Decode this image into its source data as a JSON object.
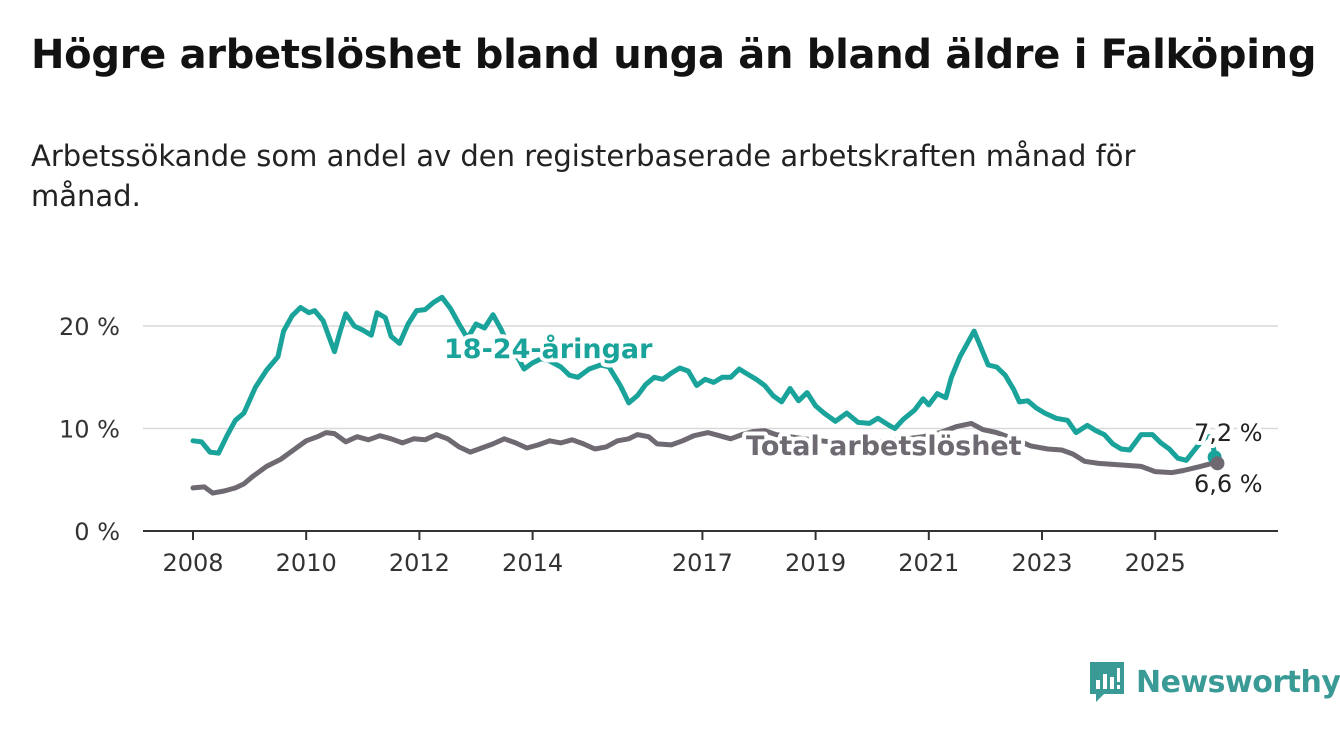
{
  "header": {
    "title": "Högre arbetslöshet bland unga än bland äldre i Falköping",
    "subtitle": "Arbetssökande som andel av den registerbaserade arbetskraften månad för månad."
  },
  "brand": {
    "name": "Newsworthy",
    "icon": "newsworthy-bar-chart-icon",
    "color": "#3a9a96"
  },
  "colors": {
    "youth": "#1aa39a",
    "total": "#6f6a72",
    "grid": "#d9d9d9",
    "axis": "#333333"
  },
  "chart_data": {
    "type": "line",
    "title": "Högre arbetslöshet bland unga än bland äldre i Falköping",
    "subtitle": "Arbetssökande som andel av den registerbaserade arbetskraften månad för månad.",
    "xlabel": "",
    "ylabel": "",
    "x_ticks": [
      "2008",
      "2010",
      "2012",
      "2014",
      "2017",
      "2019",
      "2021",
      "2023",
      "2025"
    ],
    "y_ticks": [
      "0 %",
      "10 %",
      "20 %"
    ],
    "y_tick_values": [
      0,
      10,
      20
    ],
    "xlim": [
      2008.0,
      2026.1
    ],
    "ylim": [
      0,
      25
    ],
    "grid": true,
    "legend": "direct labels on lines",
    "series": [
      {
        "name": "18-24-åringar",
        "end_label": "7,2 %",
        "points": [
          [
            2008.0,
            8.8
          ],
          [
            2008.15,
            8.7
          ],
          [
            2008.3,
            7.7
          ],
          [
            2008.45,
            7.6
          ],
          [
            2008.6,
            9.3
          ],
          [
            2008.75,
            10.8
          ],
          [
            2008.9,
            11.5
          ],
          [
            2009.1,
            14.0
          ],
          [
            2009.3,
            15.7
          ],
          [
            2009.5,
            17.0
          ],
          [
            2009.6,
            19.5
          ],
          [
            2009.75,
            21.0
          ],
          [
            2009.9,
            21.8
          ],
          [
            2010.05,
            21.3
          ],
          [
            2010.15,
            21.5
          ],
          [
            2010.3,
            20.5
          ],
          [
            2010.4,
            19.0
          ],
          [
            2010.5,
            17.5
          ],
          [
            2010.6,
            19.5
          ],
          [
            2010.7,
            21.2
          ],
          [
            2010.85,
            20.0
          ],
          [
            2011.0,
            19.6
          ],
          [
            2011.15,
            19.1
          ],
          [
            2011.25,
            21.3
          ],
          [
            2011.4,
            20.8
          ],
          [
            2011.5,
            19.0
          ],
          [
            2011.65,
            18.3
          ],
          [
            2011.8,
            20.2
          ],
          [
            2011.95,
            21.5
          ],
          [
            2012.1,
            21.6
          ],
          [
            2012.25,
            22.3
          ],
          [
            2012.4,
            22.8
          ],
          [
            2012.55,
            21.7
          ],
          [
            2012.7,
            20.2
          ],
          [
            2012.85,
            18.8
          ],
          [
            2013.0,
            20.2
          ],
          [
            2013.15,
            19.8
          ],
          [
            2013.3,
            21.1
          ],
          [
            2013.45,
            19.6
          ],
          [
            2013.6,
            17.7
          ],
          [
            2013.75,
            16.8
          ],
          [
            2013.85,
            15.8
          ],
          [
            2014.0,
            16.4
          ],
          [
            2014.15,
            16.8
          ],
          [
            2014.3,
            16.6
          ],
          [
            2014.5,
            16.0
          ],
          [
            2014.65,
            15.2
          ],
          [
            2014.8,
            15.0
          ],
          [
            2015.0,
            15.8
          ],
          [
            2015.2,
            16.2
          ],
          [
            2015.35,
            16.0
          ],
          [
            2015.55,
            14.2
          ],
          [
            2015.7,
            12.5
          ],
          [
            2015.85,
            13.2
          ],
          [
            2016.0,
            14.3
          ],
          [
            2016.15,
            15.0
          ],
          [
            2016.3,
            14.8
          ],
          [
            2016.45,
            15.4
          ],
          [
            2016.6,
            15.9
          ],
          [
            2016.75,
            15.6
          ],
          [
            2016.9,
            14.2
          ],
          [
            2017.05,
            14.8
          ],
          [
            2017.2,
            14.5
          ],
          [
            2017.35,
            15.0
          ],
          [
            2017.5,
            15.0
          ],
          [
            2017.65,
            15.8
          ],
          [
            2017.8,
            15.3
          ],
          [
            2017.95,
            14.8
          ],
          [
            2018.1,
            14.2
          ],
          [
            2018.25,
            13.2
          ],
          [
            2018.4,
            12.6
          ],
          [
            2018.55,
            13.9
          ],
          [
            2018.7,
            12.7
          ],
          [
            2018.85,
            13.5
          ],
          [
            2019.0,
            12.2
          ],
          [
            2019.15,
            11.5
          ],
          [
            2019.35,
            10.7
          ],
          [
            2019.55,
            11.5
          ],
          [
            2019.75,
            10.6
          ],
          [
            2019.95,
            10.5
          ],
          [
            2020.1,
            11.0
          ],
          [
            2020.3,
            10.3
          ],
          [
            2020.4,
            10.0
          ],
          [
            2020.55,
            10.9
          ],
          [
            2020.75,
            11.8
          ],
          [
            2020.9,
            12.9
          ],
          [
            2021.0,
            12.3
          ],
          [
            2021.15,
            13.4
          ],
          [
            2021.3,
            13.0
          ],
          [
            2021.4,
            15.0
          ],
          [
            2021.55,
            17.0
          ],
          [
            2021.7,
            18.5
          ],
          [
            2021.8,
            19.5
          ],
          [
            2021.95,
            17.5
          ],
          [
            2022.05,
            16.2
          ],
          [
            2022.2,
            16.0
          ],
          [
            2022.35,
            15.2
          ],
          [
            2022.5,
            13.8
          ],
          [
            2022.6,
            12.6
          ],
          [
            2022.75,
            12.7
          ],
          [
            2022.9,
            12.0
          ],
          [
            2023.05,
            11.5
          ],
          [
            2023.25,
            11.0
          ],
          [
            2023.45,
            10.8
          ],
          [
            2023.6,
            9.6
          ],
          [
            2023.8,
            10.3
          ],
          [
            2023.95,
            9.8
          ],
          [
            2024.1,
            9.4
          ],
          [
            2024.25,
            8.5
          ],
          [
            2024.4,
            8.0
          ],
          [
            2024.55,
            7.9
          ],
          [
            2024.75,
            9.4
          ],
          [
            2024.95,
            9.4
          ],
          [
            2025.1,
            8.6
          ],
          [
            2025.25,
            8.0
          ],
          [
            2025.4,
            7.1
          ],
          [
            2025.55,
            6.9
          ],
          [
            2025.75,
            8.3
          ],
          [
            2025.9,
            9.2
          ],
          [
            2026.0,
            9.2
          ],
          [
            2026.05,
            7.4
          ],
          [
            2026.05,
            7.2
          ]
        ]
      },
      {
        "name": "Total arbetslöshet",
        "end_label": "6,6 %",
        "points": [
          [
            2008.0,
            4.2
          ],
          [
            2008.2,
            4.3
          ],
          [
            2008.35,
            3.7
          ],
          [
            2008.55,
            3.9
          ],
          [
            2008.75,
            4.2
          ],
          [
            2008.9,
            4.6
          ],
          [
            2009.05,
            5.3
          ],
          [
            2009.3,
            6.3
          ],
          [
            2009.55,
            7.0
          ],
          [
            2009.8,
            8.0
          ],
          [
            2010.0,
            8.8
          ],
          [
            2010.2,
            9.2
          ],
          [
            2010.35,
            9.6
          ],
          [
            2010.5,
            9.5
          ],
          [
            2010.7,
            8.7
          ],
          [
            2010.9,
            9.2
          ],
          [
            2011.1,
            8.9
          ],
          [
            2011.3,
            9.3
          ],
          [
            2011.5,
            9.0
          ],
          [
            2011.7,
            8.6
          ],
          [
            2011.9,
            9.0
          ],
          [
            2012.1,
            8.9
          ],
          [
            2012.3,
            9.4
          ],
          [
            2012.5,
            9.0
          ],
          [
            2012.7,
            8.2
          ],
          [
            2012.9,
            7.7
          ],
          [
            2013.1,
            8.1
          ],
          [
            2013.3,
            8.5
          ],
          [
            2013.5,
            9.0
          ],
          [
            2013.7,
            8.6
          ],
          [
            2013.9,
            8.1
          ],
          [
            2014.1,
            8.4
          ],
          [
            2014.3,
            8.8
          ],
          [
            2014.5,
            8.6
          ],
          [
            2014.7,
            8.9
          ],
          [
            2014.9,
            8.5
          ],
          [
            2015.1,
            8.0
          ],
          [
            2015.3,
            8.2
          ],
          [
            2015.5,
            8.8
          ],
          [
            2015.7,
            9.0
          ],
          [
            2015.85,
            9.4
          ],
          [
            2016.05,
            9.2
          ],
          [
            2016.2,
            8.5
          ],
          [
            2016.45,
            8.4
          ],
          [
            2016.65,
            8.8
          ],
          [
            2016.85,
            9.3
          ],
          [
            2017.1,
            9.6
          ],
          [
            2017.3,
            9.3
          ],
          [
            2017.5,
            9.0
          ],
          [
            2017.7,
            9.4
          ],
          [
            2017.9,
            9.7
          ],
          [
            2018.1,
            9.8
          ],
          [
            2018.3,
            9.4
          ],
          [
            2018.55,
            9.2
          ],
          [
            2018.8,
            9.0
          ],
          [
            2019.1,
            8.8
          ],
          [
            2019.4,
            8.6
          ],
          [
            2019.7,
            8.5
          ],
          [
            2020.0,
            8.6
          ],
          [
            2020.3,
            8.8
          ],
          [
            2020.6,
            9.0
          ],
          [
            2020.9,
            9.2
          ],
          [
            2021.2,
            9.6
          ],
          [
            2021.5,
            10.2
          ],
          [
            2021.75,
            10.5
          ],
          [
            2021.95,
            9.9
          ],
          [
            2022.2,
            9.6
          ],
          [
            2022.5,
            9.0
          ],
          [
            2022.8,
            8.3
          ],
          [
            2023.1,
            8.0
          ],
          [
            2023.35,
            7.9
          ],
          [
            2023.55,
            7.5
          ],
          [
            2023.75,
            6.8
          ],
          [
            2024.0,
            6.6
          ],
          [
            2024.25,
            6.5
          ],
          [
            2024.5,
            6.4
          ],
          [
            2024.75,
            6.3
          ],
          [
            2025.0,
            5.8
          ],
          [
            2025.3,
            5.7
          ],
          [
            2025.5,
            5.9
          ],
          [
            2025.8,
            6.3
          ],
          [
            2026.0,
            6.6
          ],
          [
            2026.1,
            6.6
          ]
        ]
      }
    ]
  }
}
